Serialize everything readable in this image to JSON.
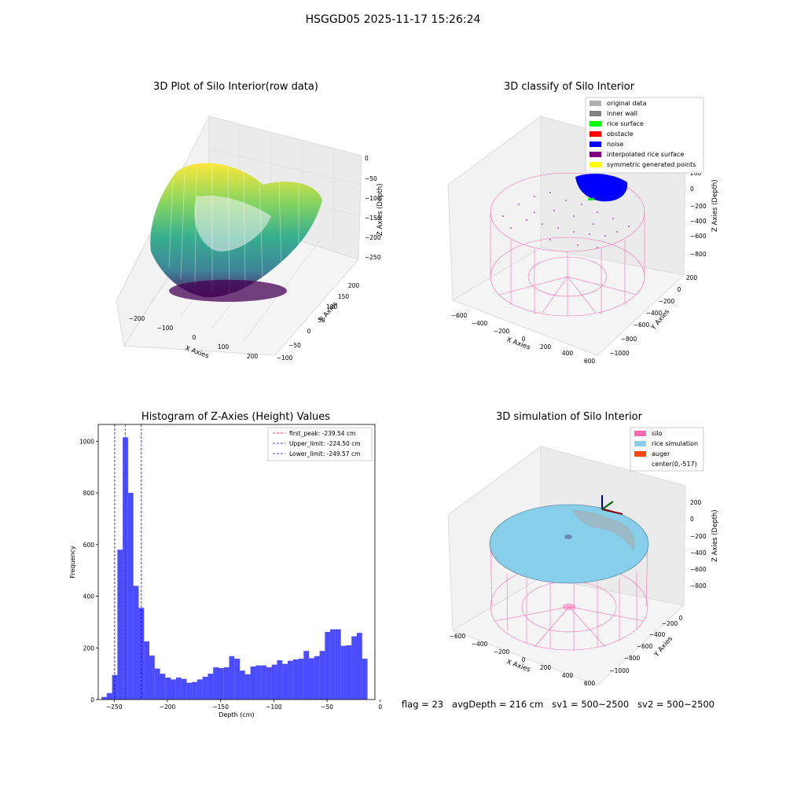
{
  "suptitle": "HSGGD05 2025-11-17 15:26:24",
  "panels": {
    "raw": {
      "title": "3D Plot of Silo Interior(row data)",
      "xlabel": "X Axies",
      "ylabel": "Y Axies",
      "zlabel": "Z Axies (Depth)",
      "x_ticks": [
        "−200",
        "−100",
        "0",
        "100",
        "200"
      ],
      "y_ticks": [
        "−100",
        "−50",
        "0",
        "50",
        "100",
        "150",
        "200"
      ],
      "z_ticks": [
        "0",
        "−50",
        "−100",
        "−150",
        "−200",
        "−250"
      ]
    },
    "classify": {
      "title": "3D classify of Silo Interior",
      "xlabel": "X Axies",
      "ylabel": "Y Axies",
      "zlabel": "Z Axies (Depth)",
      "x_ticks": [
        "−600",
        "−400",
        "−200",
        "0",
        "200",
        "400",
        "600"
      ],
      "y_ticks": [
        "−1000",
        "−800",
        "−600",
        "−400",
        "−200",
        "0",
        "200"
      ],
      "z_ticks": [
        "200",
        "0",
        "−200",
        "−400",
        "−600",
        "−800"
      ],
      "legend": [
        {
          "label": "original data",
          "color": "#b0b0b0"
        },
        {
          "label": "inner wall",
          "color": "#808080"
        },
        {
          "label": "rice surface",
          "color": "#00ff00"
        },
        {
          "label": "obstacle",
          "color": "#ff0000"
        },
        {
          "label": "noise",
          "color": "#0000ff"
        },
        {
          "label": "interpolated rice surface",
          "color": "#800080"
        },
        {
          "label": "symmetric generated points",
          "color": "#ffff00"
        }
      ]
    },
    "simulation": {
      "title": "3D simulation of Silo Interior",
      "xlabel": "X Axies",
      "ylabel": "Y Axies",
      "zlabel": "Z Axies (Depth)",
      "x_ticks": [
        "−600",
        "−400",
        "−200",
        "0",
        "200",
        "400",
        "600"
      ],
      "y_ticks": [
        "−1000",
        "−800",
        "−600",
        "−400",
        "−200",
        "0"
      ],
      "z_ticks": [
        "200",
        "0",
        "−200",
        "−400",
        "−600",
        "−800"
      ],
      "legend": [
        {
          "label": "silo",
          "color": "#ff69b4"
        },
        {
          "label": "rice simulation",
          "color": "#87ceeb"
        },
        {
          "label": "auger",
          "color": "#ff4500"
        },
        {
          "label": "center(0,-517)",
          "color": ""
        }
      ]
    }
  },
  "status_text": "flag = 23   avgDepth = 216 cm   sv1 = 500~2500   sv2 = 500~2500",
  "chart_data": {
    "type": "bar",
    "title": "Histogram of Z-Axies (Height) Values",
    "xlabel": "Depth (cm)",
    "ylabel": "Frequency",
    "xlim": [
      -265,
      -5
    ],
    "ylim": [
      0,
      1065
    ],
    "x_ticks": [
      -250,
      -200,
      -150,
      -100,
      -50,
      0
    ],
    "x_tick_labels": [
      "−250",
      "−200",
      "−150",
      "−100",
      "−50",
      "0"
    ],
    "y_ticks": [
      0,
      200,
      400,
      600,
      800,
      1000
    ],
    "y_tick_labels": [
      "0",
      "200",
      "400",
      "600",
      "800",
      "1000"
    ],
    "bin_start": -262,
    "bin_width": 5,
    "values": [
      10,
      25,
      95,
      580,
      1015,
      800,
      440,
      355,
      225,
      170,
      120,
      100,
      85,
      78,
      85,
      80,
      65,
      68,
      78,
      88,
      100,
      125,
      122,
      125,
      168,
      158,
      112,
      98,
      128,
      132,
      132,
      125,
      135,
      152,
      138,
      150,
      155,
      158,
      188,
      160,
      168,
      188,
      262,
      272,
      272,
      208,
      210,
      245,
      258,
      158
    ],
    "bar_color": "#0000ff",
    "vlines": [
      {
        "label": "first_peak: -239.54 cm",
        "x": -239.54,
        "color": "#ff0000"
      },
      {
        "label": "Upper_limit: -224.50 cm",
        "x": -224.5,
        "color": "#0000ff"
      },
      {
        "label": "Lower_limit: -249.57 cm",
        "x": -249.57,
        "color": "#0000ff"
      }
    ],
    "legend_position": "upper-right"
  }
}
